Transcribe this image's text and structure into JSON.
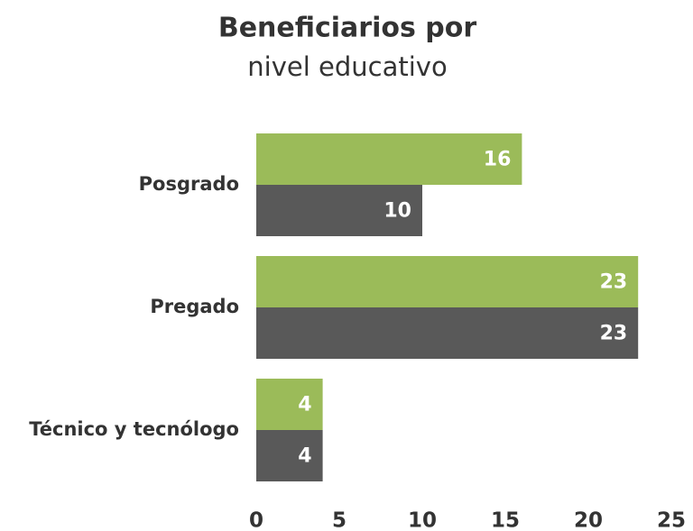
{
  "chart_data": {
    "type": "barh",
    "title": "Beneficiarios por",
    "subtitle": "nivel educativo",
    "categories": [
      "Posgrado",
      "Pregado",
      "Técnico y tecnólogo"
    ],
    "series": [
      {
        "color": "#9bbb59",
        "values": [
          16,
          23,
          4
        ]
      },
      {
        "color": "#595959",
        "values": [
          10,
          23,
          4
        ]
      }
    ],
    "xlim": [
      0,
      25
    ],
    "xticks": [
      0,
      5,
      10,
      15,
      20,
      25
    ],
    "grid": false
  }
}
